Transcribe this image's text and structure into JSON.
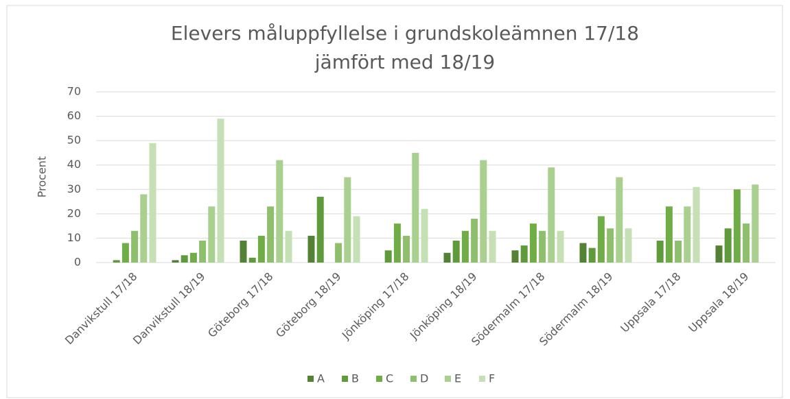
{
  "chart_data": {
    "type": "bar",
    "title": [
      "Elevers måluppfyllelse i grundskoleämnen 17/18",
      "jämfört med 18/19"
    ],
    "y_label": "Procent",
    "categories": [
      "Danvikstull 17/18",
      "Danvikstull 18/19",
      "Göteborg 17/18",
      "Göteborg 18/19",
      "Jönköping 17/18",
      "Jönköping 18/19",
      "Södermalm 17/18",
      "Södermalm 18/19",
      "Uppsala 17/18",
      "Uppsala 18/19"
    ],
    "series": [
      {
        "name": "A",
        "color": "#548235",
        "values": [
          0,
          1,
          9,
          11,
          0,
          4,
          5,
          8,
          0,
          7
        ]
      },
      {
        "name": "B",
        "color": "#5f9a3b",
        "values": [
          1,
          3,
          2,
          27,
          5,
          9,
          7,
          6,
          9,
          14
        ]
      },
      {
        "name": "C",
        "color": "#70ad47",
        "values": [
          8,
          4,
          11,
          0,
          16,
          13,
          16,
          19,
          23,
          30
        ]
      },
      {
        "name": "D",
        "color": "#8dbf6c",
        "values": [
          13,
          9,
          23,
          8,
          11,
          18,
          13,
          14,
          9,
          16
        ]
      },
      {
        "name": "E",
        "color": "#a9d08e",
        "values": [
          28,
          23,
          42,
          35,
          45,
          42,
          39,
          35,
          23,
          32
        ]
      },
      {
        "name": "F",
        "color": "#c5e0b4",
        "values": [
          49,
          59,
          13,
          19,
          22,
          13,
          13,
          14,
          31,
          0
        ]
      }
    ],
    "ylim": [
      0,
      70
    ],
    "yticks": [
      0,
      10,
      20,
      30,
      40,
      50,
      60,
      70
    ],
    "grid": true,
    "legend": "bottom"
  }
}
